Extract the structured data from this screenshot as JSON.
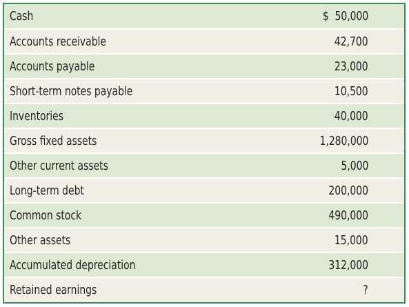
{
  "rows": [
    {
      "label": "Cash",
      "value": "$  50,000"
    },
    {
      "label": "Accounts receivable",
      "value": "42,700"
    },
    {
      "label": "Accounts payable",
      "value": "23,000"
    },
    {
      "label": "Short-term notes payable",
      "value": "10,500"
    },
    {
      "label": "Inventories",
      "value": "40,000"
    },
    {
      "label": "Gross fixed assets",
      "value": "1,280,000"
    },
    {
      "label": "Other current assets",
      "value": "5,000"
    },
    {
      "label": "Long-term debt",
      "value": "200,000"
    },
    {
      "label": "Common stock",
      "value": "490,000"
    },
    {
      "label": "Other assets",
      "value": "15,000"
    },
    {
      "label": "Accumulated depreciation",
      "value": "312,000"
    },
    {
      "label": "Retained earnings",
      "value": "?"
    }
  ],
  "colors": {
    "border": "#3c8a5c",
    "row_green": "#dde9d3",
    "row_cream": "#f1efe4"
  }
}
